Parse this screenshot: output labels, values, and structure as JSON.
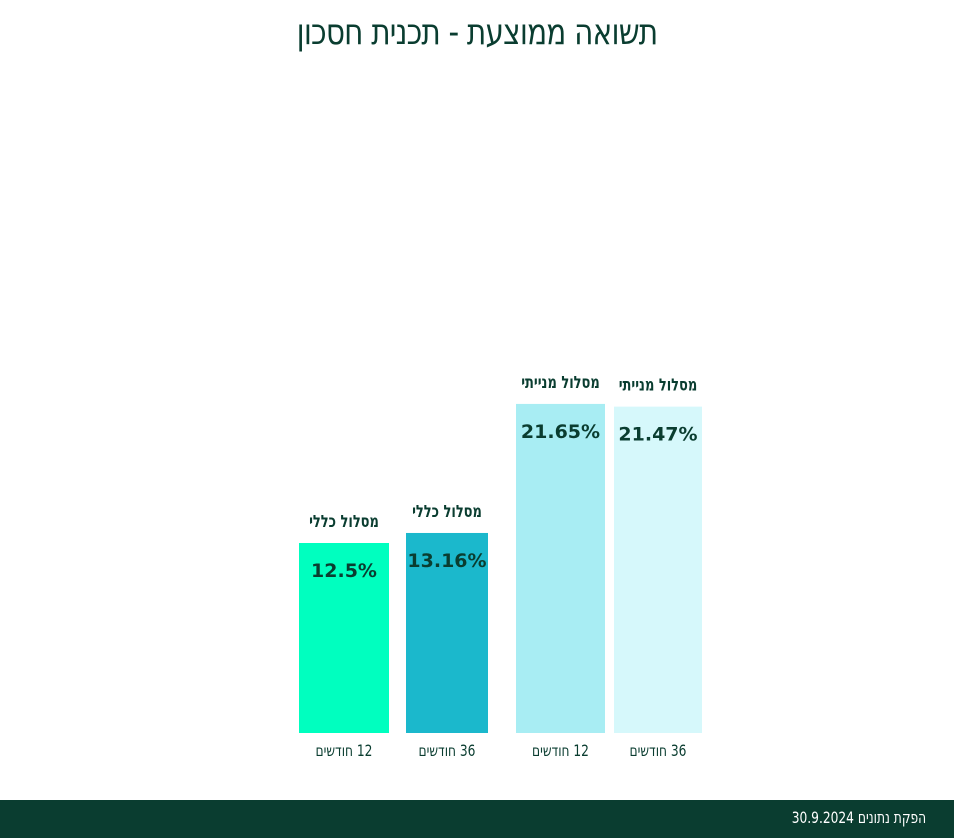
{
  "title": "תשואה ממוצעת - תכנית חסכון",
  "footer": {
    "data_date": "הפקת נתונים 30.9.2024"
  },
  "chart_data": {
    "type": "bar",
    "title": "תשואה ממוצעת - תכנית חסכון",
    "xlabel": "",
    "ylabel": "",
    "categories": [
      "12 חודשים",
      "36 חודשים",
      "12 חודשים",
      "36 חודשים"
    ],
    "track_labels": [
      "מסלול כללי",
      "מסלול כללי",
      "מסלול מנייתי",
      "מסלול מנייתי"
    ],
    "values": [
      12.5,
      13.16,
      21.65,
      21.47
    ],
    "value_labels": [
      "12.5%",
      "13.16%",
      "21.65%",
      "21.47%"
    ],
    "colors": [
      "#00ffbf",
      "#1bb8cc",
      "#a8edf3",
      "#d6f8fb"
    ],
    "ylim": [
      0,
      24
    ],
    "grid": false,
    "legend": "none"
  }
}
